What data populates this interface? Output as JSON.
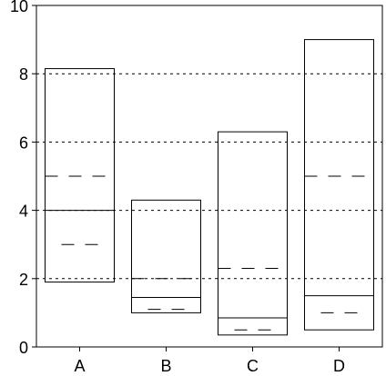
{
  "chart_data": {
    "type": "box",
    "categories": [
      "A",
      "B",
      "C",
      "D"
    ],
    "series": [
      {
        "boxes": [
          {
            "q1": 1.9,
            "median": 4.0,
            "q3": 8.15,
            "mean": 5.0,
            "mean_inner": 3.0
          },
          {
            "q1": 1.0,
            "median": 1.45,
            "q3": 4.3,
            "mean": 2.0,
            "mean_inner": 1.1
          },
          {
            "q1": 0.35,
            "median": 0.85,
            "q3": 6.3,
            "mean": 2.3,
            "mean_inner": 0.5
          },
          {
            "q1": 0.5,
            "median": 1.5,
            "q3": 9.0,
            "mean": 5.0,
            "mean_inner": 1.0
          }
        ]
      }
    ],
    "ylim": [
      0,
      10
    ],
    "yticks": [
      "0",
      "2",
      "4",
      "6",
      "8",
      "10"
    ],
    "grid": "dotted horizontal at 2, 4, 6, 8",
    "title": "",
    "xlabel": "",
    "ylabel": ""
  }
}
